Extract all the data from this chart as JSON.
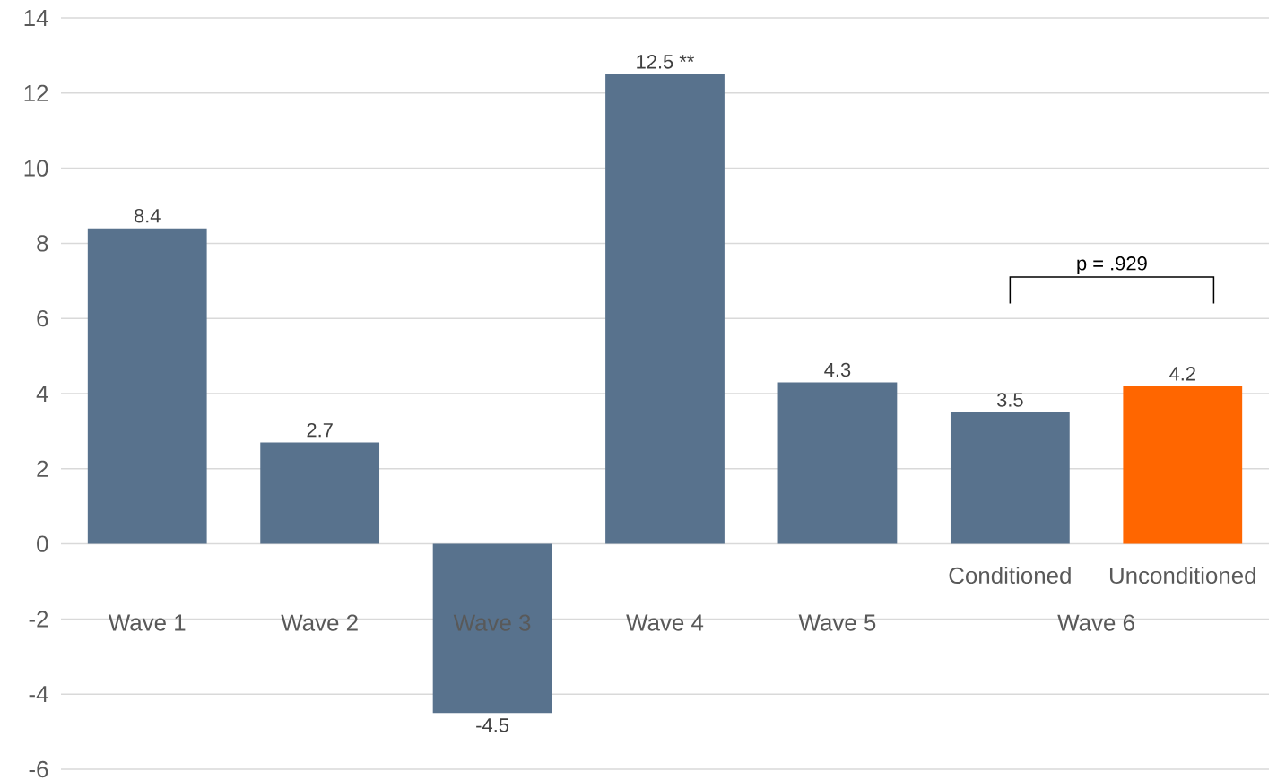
{
  "chart_data": {
    "type": "bar",
    "categories": [
      "Wave 1",
      "Wave 2",
      "Wave 3",
      "Wave 4",
      "Wave 5",
      "Conditioned",
      "Unconditioned"
    ],
    "values": [
      8.4,
      2.7,
      -4.5,
      12.5,
      4.3,
      3.5,
      4.2
    ],
    "colors": [
      "#58728d",
      "#58728d",
      "#58728d",
      "#58728d",
      "#58728d",
      "#58728d",
      "#ff6600"
    ],
    "value_labels": [
      "8.4",
      "2.7",
      "-4.5",
      "12.5 **",
      "4.3",
      "3.5",
      "4.2"
    ],
    "ylim": [
      -6,
      14
    ],
    "yticks": [
      -6,
      -4,
      -2,
      0,
      2,
      4,
      6,
      8,
      10,
      12,
      14
    ],
    "grid": "y",
    "annotations": [
      "p = .929",
      "Wave 6"
    ]
  }
}
